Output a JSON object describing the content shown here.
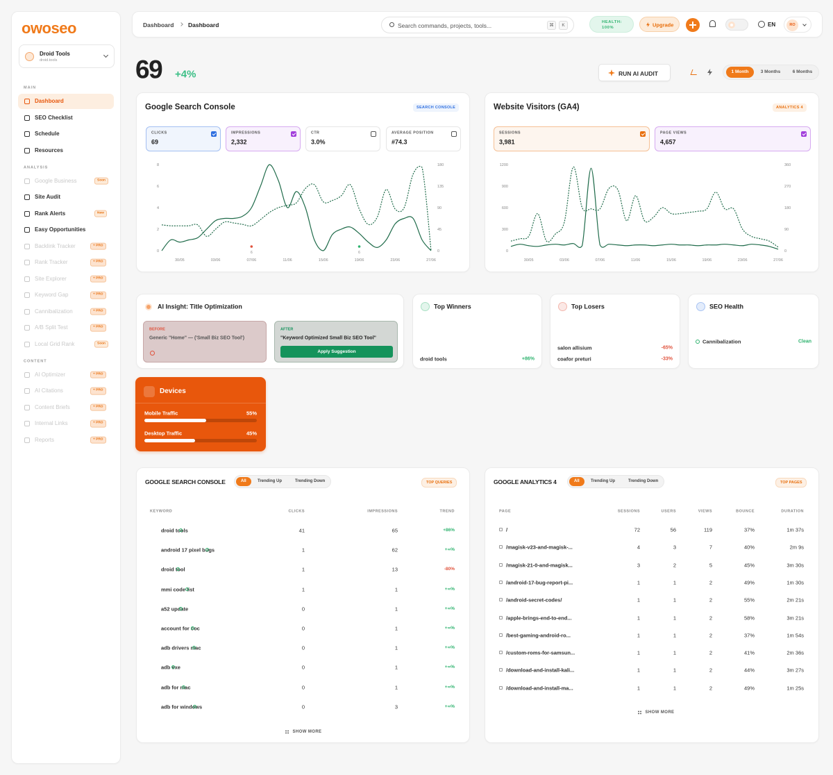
{
  "sidebar": {
    "logo": "owoseo",
    "workspace": {
      "name": "Droid Tools",
      "domain": "droid.tools"
    },
    "sections": [
      {
        "title": "MAIN",
        "items": [
          {
            "label": "Dashboard",
            "active": true
          },
          {
            "label": "SEO Checklist"
          },
          {
            "label": "Schedule"
          },
          {
            "label": "Resources"
          }
        ]
      },
      {
        "title": "ANALYSIS",
        "items": [
          {
            "label": "Google Business",
            "badge": "Soon",
            "disabled": true
          },
          {
            "label": "Site Audit"
          },
          {
            "label": "Rank Alerts",
            "badge": "New"
          },
          {
            "label": "Easy Opportunities"
          },
          {
            "label": "Backlink Tracker",
            "badge": "+ PRO",
            "disabled": true
          },
          {
            "label": "Rank Tracker",
            "badge": "+ PRO",
            "disabled": true
          },
          {
            "label": "Site Explorer",
            "badge": "+ PRO",
            "disabled": true
          },
          {
            "label": "Keyword Gap",
            "badge": "+ PRO",
            "disabled": true
          },
          {
            "label": "Cannibalization",
            "badge": "+ PRO",
            "disabled": true
          },
          {
            "label": "A/B Split Test",
            "badge": "+ PRO",
            "disabled": true
          },
          {
            "label": "Local Grid Rank",
            "badge": "Soon",
            "disabled": true
          }
        ]
      },
      {
        "title": "CONTENT",
        "items": [
          {
            "label": "AI Optimizer",
            "badge": "+ PRO",
            "disabled": true
          },
          {
            "label": "AI Citations",
            "badge": "+ PRO",
            "disabled": true
          },
          {
            "label": "Content Briefs",
            "badge": "+ PRO",
            "disabled": true
          },
          {
            "label": "Internal Links",
            "badge": "+ PRO",
            "disabled": true
          },
          {
            "label": "Reports",
            "badge": "+ PRO",
            "disabled": true
          }
        ]
      }
    ]
  },
  "header": {
    "breadcrumb": [
      "Dashboard",
      "Dashboard"
    ],
    "search": "Search commands, projects, tools...",
    "keys": [
      "⌘",
      "K"
    ],
    "health": "HEALTH: 100%",
    "upgrade": "Upgrade",
    "language": "EN",
    "avatar": "RO"
  },
  "score": {
    "value": 69,
    "change": "+4%"
  },
  "audit_button": "RUN AI AUDIT",
  "ranges": {
    "options": [
      "1 Month",
      "3 Months",
      "6 Months"
    ],
    "selected": 0
  },
  "gsc_card": {
    "title": "Google Search Console",
    "tag": "SEARCH CONSOLE",
    "metrics": [
      {
        "value": 69,
        "checked": true,
        "color": "#2f6fe0"
      },
      {
        "value": "2,332",
        "checked": true,
        "color": "#a23fdc"
      },
      {
        "label": "CTR",
        "value": "3.0%",
        "checked": false
      },
      {
        "label": "AVERAGE POSITION",
        "value": "#74.3",
        "checked": false
      }
    ]
  },
  "ga_card": {
    "title": "Website Visitors (GA4)",
    "tag": "ANALYTICS 4",
    "metrics": [
      {
        "value": "3,981",
        "checked": true,
        "color": "#e8700f"
      },
      {
        "value": "4,657",
        "checked": true,
        "color": "#a23fdc"
      }
    ]
  },
  "chart_data": [
    {
      "type": "line",
      "x": [
        null,
        null,
        "30/05",
        null,
        null,
        null,
        "03/06",
        null,
        null,
        null,
        "07/06",
        null,
        null,
        null,
        "11/06",
        null,
        null,
        null,
        "15/06",
        null,
        null,
        null,
        "19/06",
        null,
        null,
        null,
        "23/06",
        null,
        null,
        null,
        "27/06"
      ],
      "series": [
        {
          "name": "CLICKS",
          "color": "#1f6b4a",
          "line_style": "solid",
          "values": [
            0,
            1,
            0.8,
            1,
            1.2,
            2,
            2.8,
            3,
            3,
            3.2,
            4,
            6,
            8,
            6.5,
            4,
            5.5,
            4,
            1,
            0,
            1.5,
            2,
            2.2,
            1.6,
            0.8,
            0.3,
            1,
            2.5,
            3,
            3,
            1,
            0
          ]
        },
        {
          "name": "IMPRESSIONS",
          "color": "#1f6b4a",
          "line_style": "dotted",
          "axis": "y2",
          "values": [
            54,
            52,
            52,
            52,
            54,
            30,
            45,
            60,
            58,
            55,
            52,
            65,
            80,
            90,
            95,
            100,
            130,
            138,
            102,
            105,
            115,
            138,
            87,
            55,
            70,
            128,
            87,
            90,
            160,
            174,
            0
          ]
        }
      ],
      "ylim": [
        0,
        8
      ],
      "yticks": [
        0,
        2,
        4,
        6,
        8
      ],
      "y2lim": [
        0,
        180
      ],
      "y2ticks": [
        0,
        45,
        90,
        135,
        180
      ],
      "annotations": [
        {
          "x": "07/06",
          "label": "6",
          "color": "#e0533d"
        },
        {
          "x": "19/06",
          "label": "6",
          "color": "#2fb36f"
        }
      ]
    },
    {
      "type": "line",
      "x": [
        null,
        null,
        "30/05",
        null,
        null,
        null,
        "03/06",
        null,
        null,
        null,
        "07/06",
        null,
        null,
        null,
        "11/06",
        null,
        null,
        null,
        "15/06",
        null,
        null,
        null,
        "19/06",
        null,
        null,
        null,
        "23/06",
        null,
        null,
        null,
        "27/06"
      ],
      "series": [
        {
          "name": "SESSIONS",
          "color": "#1f6b4a",
          "line_style": "solid",
          "values": [
            60,
            90,
            70,
            60,
            80,
            90,
            80,
            100,
            70,
            1150,
            80,
            90,
            80,
            70,
            80,
            80,
            70,
            80,
            90,
            80,
            80,
            70,
            80,
            80,
            90,
            80,
            70,
            90,
            80,
            60,
            20
          ]
        },
        {
          "name": "PAGE VIEWS",
          "color": "#1f6b4a",
          "line_style": "dotted",
          "axis": "y2",
          "values": [
            40,
            50,
            60,
            155,
            40,
            70,
            120,
            350,
            180,
            175,
            175,
            260,
            255,
            125,
            230,
            125,
            140,
            180,
            155,
            155,
            160,
            165,
            175,
            245,
            175,
            175,
            90,
            60,
            50,
            40,
            15
          ]
        }
      ],
      "ylim": [
        0,
        1200
      ],
      "yticks": [
        0,
        300,
        600,
        900,
        1200
      ],
      "y2lim": [
        0,
        360
      ],
      "y2ticks": [
        0,
        90,
        180,
        270,
        360
      ]
    }
  ],
  "insight": {
    "title": "AI Insight: Title Optimization",
    "before_label": "BEFORE",
    "before_text": "Generic \"Home\" — ('Small Biz SEO Tool')",
    "after_label": "AFTER",
    "after_text": "\"Keyword Optimized Small Biz SEO Tool\"",
    "button": "Apply Suggestion"
  },
  "winners": {
    "title": "Top Winners",
    "rows": [
      {
        "name": "droid tools",
        "change": "+86%"
      }
    ]
  },
  "losers": {
    "title": "Top Losers",
    "rows": [
      {
        "name": "salon allisium",
        "change": "-65%"
      },
      {
        "name": "coafor preturi",
        "change": "-33%"
      }
    ]
  },
  "health": {
    "title": "SEO Health",
    "rows": [
      {
        "name": "Cannibalization",
        "status": "Clean"
      }
    ]
  },
  "devices": {
    "title": "Devices",
    "labels": [
      "Mobile Traffic",
      "Desktop Traffic"
    ],
    "values": [
      55,
      45
    ],
    "value_labels": [
      "55%",
      "45%"
    ]
  },
  "gsc_table": {
    "title": "GOOGLE SEARCH CONSOLE",
    "tabs": [
      "All",
      "Trending Up",
      "Trending Down"
    ],
    "active_tab": 0,
    "tag": "TOP QUERIES",
    "columns": [
      "KEYWORD",
      "CLICKS",
      "IMPRESSIONS",
      "TREND"
    ],
    "rows": [
      [
        "droid tools",
        41,
        65,
        "+86%"
      ],
      [
        "android 17 pixel bugs",
        1,
        62,
        "+∞%"
      ],
      [
        "droid tool",
        1,
        13,
        "-80%"
      ],
      [
        "mmi code list",
        1,
        1,
        "+∞%"
      ],
      [
        "a52 update",
        0,
        1,
        "+∞%"
      ],
      [
        "account for coc",
        0,
        1,
        "+∞%"
      ],
      [
        "adb drivers mac",
        0,
        1,
        "+∞%"
      ],
      [
        "adb exe",
        0,
        1,
        "+∞%"
      ],
      [
        "adb for mac",
        0,
        1,
        "+∞%"
      ],
      [
        "adb for windows",
        0,
        3,
        "+∞%"
      ]
    ],
    "more": "SHOW MORE"
  },
  "ga_table": {
    "title": "GOOGLE ANALYTICS 4",
    "tabs": [
      "All",
      "Trending Up",
      "Trending Down"
    ],
    "active_tab": 0,
    "tag": "TOP PAGES",
    "columns": [
      "PAGE",
      "SESSIONS",
      "USERS",
      "VIEWS",
      "BOUNCE",
      "DURATION"
    ],
    "rows": [
      [
        "/",
        72,
        56,
        119,
        "37%",
        "1m 37s"
      ],
      [
        "/magisk-v23-and-magisk-...",
        4,
        3,
        7,
        "40%",
        "2m 9s"
      ],
      [
        "/magisk-21-0-and-magisk...",
        3,
        2,
        5,
        "45%",
        "3m 30s"
      ],
      [
        "/android-17-bug-report-pi...",
        1,
        1,
        2,
        "49%",
        "1m 30s"
      ],
      [
        "/android-secret-codes/",
        1,
        1,
        2,
        "55%",
        "2m 21s"
      ],
      [
        "/apple-brings-end-to-end...",
        1,
        1,
        2,
        "58%",
        "3m 21s"
      ],
      [
        "/best-gaming-android-ro...",
        1,
        1,
        2,
        "37%",
        "1m 54s"
      ],
      [
        "/custom-roms-for-samsun...",
        1,
        1,
        2,
        "41%",
        "2m 36s"
      ],
      [
        "/download-and-install-kali...",
        1,
        1,
        2,
        "44%",
        "3m 27s"
      ],
      [
        "/download-and-install-ma...",
        1,
        1,
        2,
        "49%",
        "1m 25s"
      ]
    ],
    "more": "SHOW MORE"
  }
}
